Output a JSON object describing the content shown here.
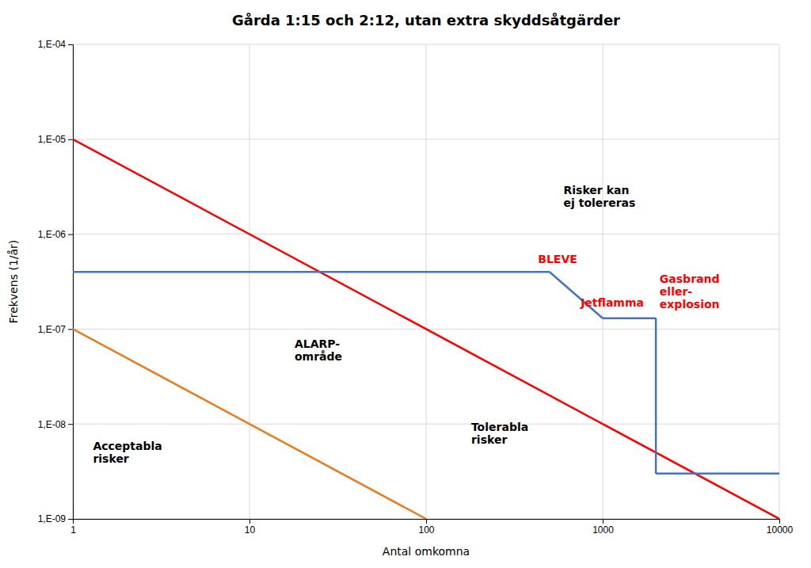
{
  "chart_data": {
    "type": "line",
    "title": "Gårda 1:15 och 2:12, utan extra skyddsåtgärder",
    "xlabel": "Antal omkomna",
    "ylabel": "Frekvens (1/år)",
    "log": true,
    "grid": true,
    "xlim": [
      1,
      10000
    ],
    "ylim": [
      1e-09,
      0.0001
    ],
    "xticks": [
      1,
      10,
      100,
      1000,
      10000
    ],
    "yticks": [
      {
        "value": 1e-09,
        "label": "1,E-09"
      },
      {
        "value": 1e-08,
        "label": "1,E-08"
      },
      {
        "value": 1e-07,
        "label": "1,E-07"
      },
      {
        "value": 1e-06,
        "label": "1,E-06"
      },
      {
        "value": 1e-05,
        "label": "1,E-05"
      },
      {
        "value": 0.0001,
        "label": "1,E-04"
      }
    ],
    "series": [
      {
        "color": "#FF0000",
        "x": [
          1,
          10000
        ],
        "values": [
          1e-05,
          1e-09
        ]
      },
      {
        "color": "#E87C1E",
        "x": [
          1,
          100
        ],
        "values": [
          1e-07,
          1e-09
        ]
      },
      {
        "color": "#4472C4",
        "x": [
          1,
          500
        ],
        "values": [
          4e-07,
          4e-07
        ]
      },
      {
        "color": "#4472C4",
        "x": [
          500,
          1000
        ],
        "values": [
          4e-07,
          1.3e-07
        ]
      },
      {
        "color": "#4472C4",
        "x": [
          1000,
          2000
        ],
        "values": [
          1.3e-07,
          1.3e-07
        ]
      },
      {
        "color": "#4472C4",
        "x": [
          2000,
          2000
        ],
        "values": [
          1.3e-07,
          3e-09
        ]
      },
      {
        "color": "#4472C4",
        "x": [
          2000,
          10000
        ],
        "values": [
          3e-09,
          3e-09
        ]
      }
    ],
    "annotations": [
      {
        "text": "Risker kan\nej tolereras",
        "x": 600,
        "y": 2.5e-06,
        "color": "#000000"
      },
      {
        "text": "BLEVE",
        "x": 430,
        "y": 5.5e-07,
        "color": "#FF0000"
      },
      {
        "text": "Jetflamma",
        "x": 750,
        "y": 1.9e-07,
        "color": "#FF0000"
      },
      {
        "text": "Gasbrand\neller-\nexplosion",
        "x": 2100,
        "y": 2.5e-07,
        "color": "#FF0000"
      },
      {
        "text": "ALARP-\nområde",
        "x": 18,
        "y": 6e-08,
        "color": "#000000"
      },
      {
        "text": "Tolerabla\nrisker",
        "x": 180,
        "y": 8e-09,
        "color": "#000000"
      },
      {
        "text": "Acceptabla\nrisker",
        "x": 1.3,
        "y": 5e-09,
        "color": "#000000"
      }
    ]
  }
}
